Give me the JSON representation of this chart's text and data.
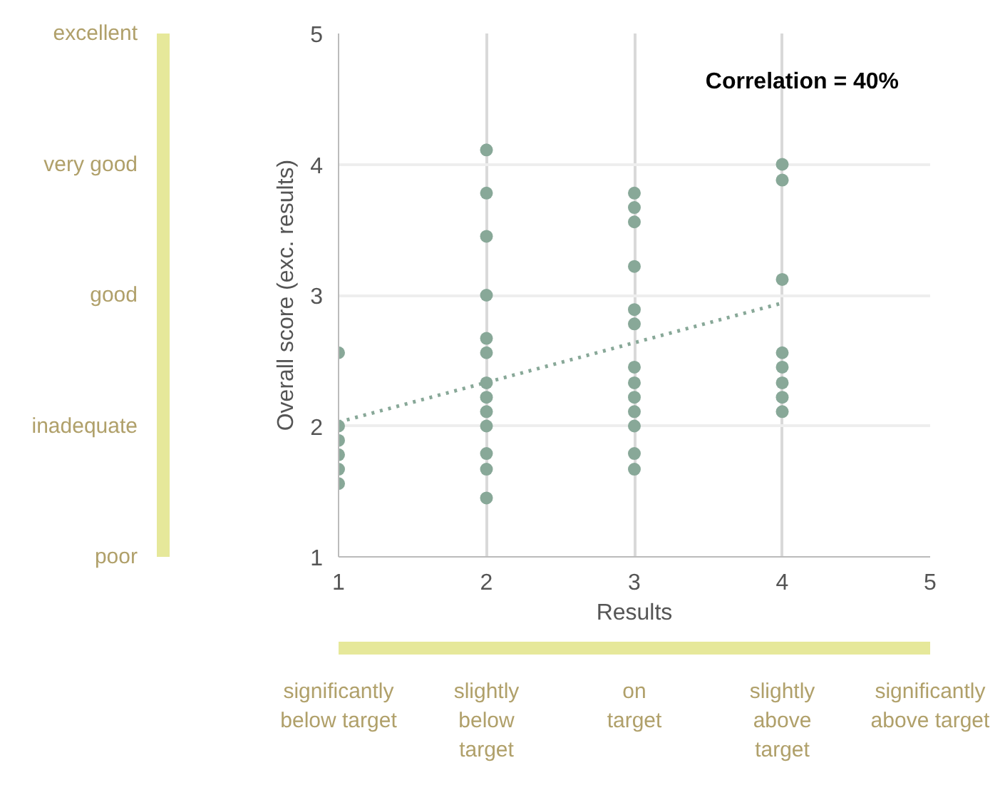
{
  "chart_data": {
    "type": "scatter",
    "xlabel": "Results",
    "ylabel": "Overall score (exc. results)",
    "xlim": [
      1,
      5
    ],
    "xticks": [
      1,
      2,
      3,
      4,
      5
    ],
    "ylim": [
      1,
      5
    ],
    "yticks": [
      1,
      2,
      3,
      4,
      5
    ],
    "grid": true,
    "marker": "circle",
    "annotations": [
      "Correlation = 40%",
      "poor",
      "inadequate",
      "good",
      "very good",
      "excellent",
      "significantly\nbelow target",
      "slightly\nbelow\ntarget",
      "on\ntarget",
      "slightly\nabove\ntarget",
      "significantly\nabove target"
    ],
    "series": [
      {
        "color": "#88a898",
        "x": [
          1,
          1,
          1,
          1,
          1,
          1,
          2,
          2,
          2,
          2,
          2,
          2,
          2,
          2,
          2,
          2,
          2,
          2,
          2,
          3,
          3,
          3,
          3,
          3,
          3,
          3,
          3,
          3,
          3,
          3,
          3,
          3,
          4,
          4,
          4,
          4,
          4,
          4,
          4,
          4
        ],
        "values": [
          2.56,
          2.0,
          1.89,
          1.78,
          1.67,
          1.56,
          4.11,
          3.78,
          3.45,
          3.0,
          2.67,
          2.56,
          2.33,
          2.22,
          2.11,
          2.0,
          1.79,
          1.67,
          1.45,
          3.78,
          3.67,
          3.56,
          3.22,
          2.89,
          2.78,
          2.45,
          2.33,
          2.22,
          2.11,
          2.0,
          1.79,
          1.67,
          4.0,
          3.88,
          3.12,
          2.56,
          2.45,
          2.33,
          2.22,
          2.11
        ]
      },
      {
        "type": "line",
        "color": "#88a898",
        "line_style": "dotted",
        "marker": "none",
        "x": [
          1,
          4
        ],
        "values": [
          2.03,
          2.94
        ]
      }
    ]
  }
}
